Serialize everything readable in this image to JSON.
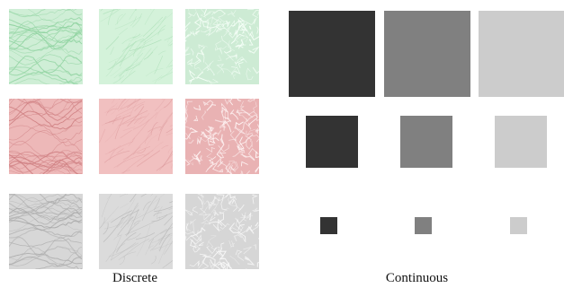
{
  "discrete": {
    "caption": "Discrete",
    "rows": [
      {
        "name": "green",
        "tiles": [
          {
            "base": "#cfeed6",
            "line": "#8fd3a0",
            "style": "wavy"
          },
          {
            "base": "#d4f2da",
            "line": "#a7ddb3",
            "style": "scratch"
          },
          {
            "base": "#cdebd4",
            "line": "#f6fff8",
            "style": "crackle"
          }
        ]
      },
      {
        "name": "red",
        "tiles": [
          {
            "base": "#edb8b8",
            "line": "#cf7f82",
            "style": "wavy"
          },
          {
            "base": "#f1c0c0",
            "line": "#dd9b9d",
            "style": "scratch"
          },
          {
            "base": "#e9b2b3",
            "line": "#fff6f6",
            "style": "crackle"
          }
        ]
      },
      {
        "name": "gray",
        "tiles": [
          {
            "base": "#d7d7d7",
            "line": "#a9a9a9",
            "style": "wavy"
          },
          {
            "base": "#dbdbdb",
            "line": "#b4b4b4",
            "style": "scratch"
          },
          {
            "base": "#d6d6d6",
            "line": "#f8f8f8",
            "style": "crackle"
          }
        ]
      }
    ]
  },
  "continuous": {
    "caption": "Continuous",
    "swatch_colors": [
      "#333333",
      "#808080",
      "#cccccc"
    ]
  }
}
